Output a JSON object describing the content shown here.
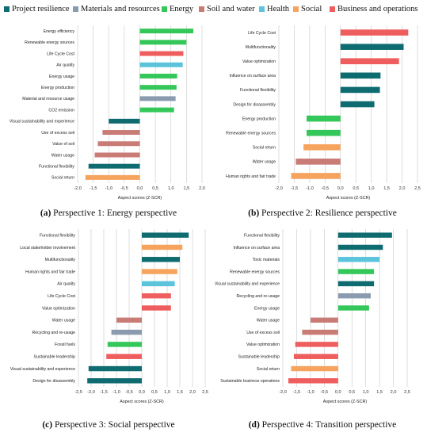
{
  "legend": [
    {
      "key": "project_resilience",
      "label": "Project resilience",
      "color": "#0e6b70"
    },
    {
      "key": "materials_resources",
      "label": "Materials and resources",
      "color": "#8a9bb0"
    },
    {
      "key": "energy",
      "label": "Energy",
      "color": "#34c759"
    },
    {
      "key": "soil_water",
      "label": "Soil and water",
      "color": "#c97b76"
    },
    {
      "key": "health",
      "label": "Health",
      "color": "#5bc4dc"
    },
    {
      "key": "social",
      "label": "Social",
      "color": "#f6a35e"
    },
    {
      "key": "business_operations",
      "label": "Business and operations",
      "color": "#ef5e5e"
    }
  ],
  "chart_data": [
    {
      "type": "bar",
      "orientation": "horizontal",
      "caption_letter": "(a)",
      "caption_text": " Perspective 1: Energy perspective",
      "xlabel": "Aspect scores (Z-SCR)",
      "xlim": [
        -2.0,
        2.0
      ],
      "ticks": [
        -2.0,
        -1.5,
        -1.0,
        -0.5,
        0.0,
        0.5,
        1.0,
        1.5,
        2.0
      ],
      "tick_labels": [
        "-2,0",
        "-1,5",
        "-1,0",
        "-0,5",
        "0,0",
        "0,5",
        "1,0",
        "1,5",
        "2,0"
      ],
      "grid": true,
      "categories": [
        "Energy efficiency",
        "Renewable energy sources",
        "Life Cycle Cost",
        "Air quality",
        "Energy usage",
        "Energy production",
        "Material and resource usage",
        "CO2 emission",
        "Visual sustainability and experience",
        "Use of excess soil",
        "Value of soil",
        "Water usage",
        "Functional flexibility",
        "Social return"
      ],
      "values": [
        1.72,
        1.5,
        1.4,
        1.38,
        1.2,
        1.18,
        1.15,
        1.1,
        -1.0,
        -1.2,
        -1.35,
        -1.45,
        -1.65,
        -1.75
      ],
      "groups": [
        "energy",
        "energy",
        "business_operations",
        "health",
        "energy",
        "energy",
        "materials_resources",
        "energy",
        "project_resilience",
        "soil_water",
        "soil_water",
        "soil_water",
        "project_resilience",
        "social"
      ]
    },
    {
      "type": "bar",
      "orientation": "horizontal",
      "caption_letter": "(b)",
      "caption_text": " Perspective 2: Resilience perspective",
      "xlabel": "Aspect scores (Z-SCR)",
      "xlim": [
        -2.0,
        2.5
      ],
      "ticks": [
        -2.0,
        -1.5,
        -1.0,
        -0.5,
        0.0,
        0.5,
        1.0,
        1.5,
        2.0,
        2.5
      ],
      "tick_labels": [
        "-2,0",
        "-1,5",
        "-1,0",
        "-0,5",
        "0,0",
        "0,5",
        "1,0",
        "1,5",
        "2,0",
        "2,5"
      ],
      "grid": true,
      "categories": [
        "Life Cycle Cost",
        "Multifunctionality",
        "Value optimization",
        "Influence on surface area",
        "Functional flexibility",
        "Design for disassembly",
        "Energy production",
        "Renewable energy sources",
        "Social return",
        "Water usage",
        "Human rights and fair trade"
      ],
      "values": [
        2.2,
        2.05,
        1.9,
        1.3,
        1.28,
        1.1,
        -1.1,
        -1.1,
        -1.2,
        -1.45,
        -1.6
      ],
      "groups": [
        "business_operations",
        "project_resilience",
        "business_operations",
        "project_resilience",
        "project_resilience",
        "project_resilience",
        "energy",
        "energy",
        "social",
        "soil_water",
        "social"
      ]
    },
    {
      "type": "bar",
      "orientation": "horizontal",
      "caption_letter": "(c)",
      "caption_text": " Perspective 3: Social perspective",
      "xlabel": "Aspect scores (Z-SCR)",
      "xlim": [
        -2.5,
        2.5
      ],
      "ticks": [
        -2.5,
        -2.0,
        -1.5,
        -1.0,
        -0.5,
        0.0,
        0.5,
        1.0,
        1.5,
        2.0,
        2.5
      ],
      "tick_labels": [
        "-2,5",
        "-2,0",
        "-1,5",
        "-1,0",
        "-0,5",
        "0,0",
        "0,5",
        "1,0",
        "1,5",
        "2,0",
        "2,5"
      ],
      "grid": true,
      "categories": [
        "Functional flexibility",
        "Local stakeholder involvement",
        "Multifunctionality",
        "Human rights and fair trade",
        "Air quality",
        "Life Cycle Cost",
        "Value optimization",
        "Water usage",
        "Recycling and re-usage",
        "Fossil fuels",
        "Sustainable leadership",
        "Visual sustainability and experience",
        "Design for disassembly"
      ],
      "values": [
        1.85,
        1.6,
        1.5,
        1.4,
        1.3,
        1.15,
        1.15,
        -1.0,
        -1.2,
        -1.35,
        -1.4,
        -2.1,
        -2.15
      ],
      "groups": [
        "project_resilience",
        "social",
        "project_resilience",
        "social",
        "health",
        "business_operations",
        "business_operations",
        "soil_water",
        "materials_resources",
        "energy",
        "business_operations",
        "project_resilience",
        "project_resilience"
      ]
    },
    {
      "type": "bar",
      "orientation": "horizontal",
      "caption_letter": "(d)",
      "caption_text": " Perspective 4: Transition perspective",
      "xlabel": "Aspect scores (Z-SCR)",
      "xlim": [
        -2.0,
        2.5
      ],
      "ticks": [
        -2.0,
        -1.5,
        -1.0,
        -0.5,
        0.0,
        0.5,
        1.0,
        1.5,
        2.0,
        2.5
      ],
      "tick_labels": [
        "-2,0",
        "-1,5",
        "-1,0",
        "-0,5",
        "0,0",
        "0,5",
        "1,0",
        "1,5",
        "2,0",
        "2,5"
      ],
      "grid": true,
      "categories": [
        "Functional flexibility",
        "Influence on surface area",
        "Toxic materials",
        "Renewable energy sources",
        "Visual sustainability and experience",
        "Recycling and re-usage",
        "Energy usage",
        "Water usage",
        "Use of excess soil",
        "Value optimization",
        "Sustainable leadership",
        "Social return",
        "Sustainable business operations"
      ],
      "values": [
        1.95,
        1.62,
        1.5,
        1.3,
        1.3,
        1.18,
        1.12,
        -1.0,
        -1.3,
        -1.55,
        -1.6,
        -1.7,
        -1.8
      ],
      "groups": [
        "project_resilience",
        "project_resilience",
        "health",
        "energy",
        "project_resilience",
        "materials_resources",
        "energy",
        "soil_water",
        "soil_water",
        "business_operations",
        "business_operations",
        "social",
        "business_operations"
      ]
    }
  ]
}
